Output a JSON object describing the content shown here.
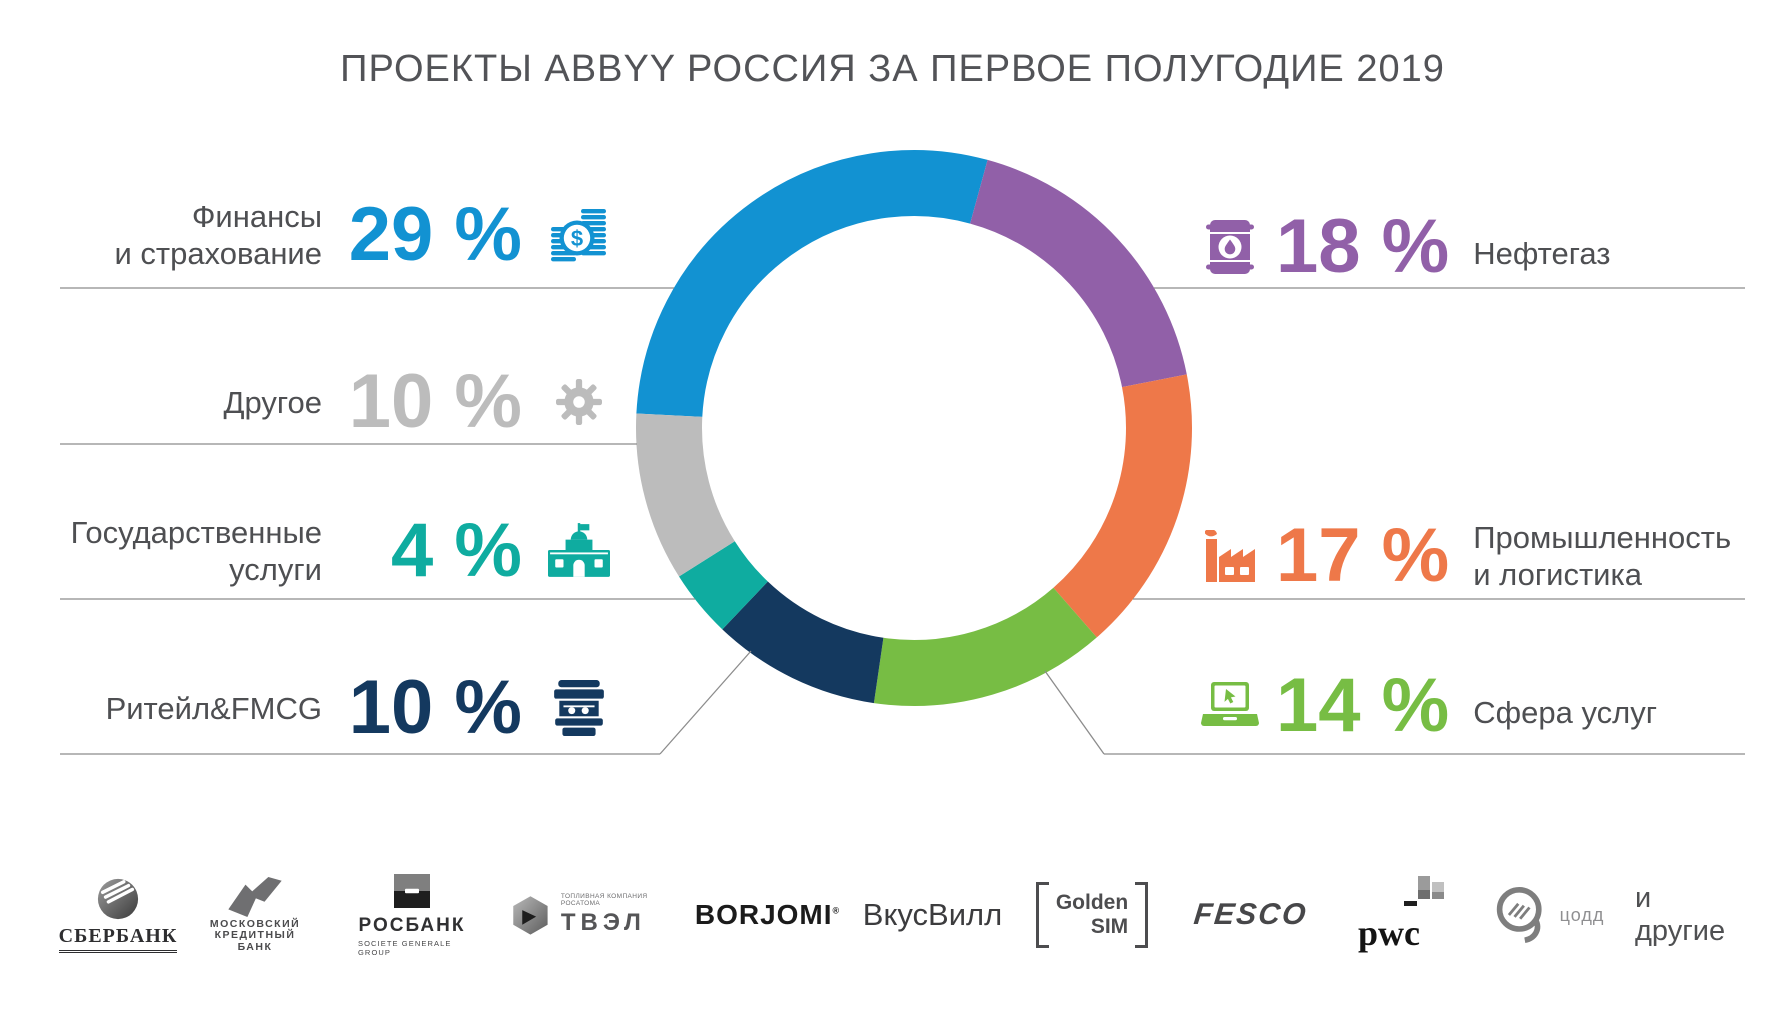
{
  "title": "ПРОЕКТЫ ABBYY РОССИЯ ЗА ПЕРВОЕ ПОЛУГОДИЕ 2019",
  "chart_data": {
    "type": "pie",
    "subtype": "donut",
    "title": "ПРОЕКТЫ ABBYY РОССИЯ ЗА ПЕРВОЕ ПОЛУГОДИЕ 2019",
    "unit": "%",
    "start_angle_deg": 273,
    "legend_position": "callouts-both-sides",
    "segments_clockwise": [
      {
        "label": "Финансы и страхование",
        "value": 29,
        "color": "#1292d2"
      },
      {
        "label": "Нефтегаз",
        "value": 18,
        "color": "#9160a8"
      },
      {
        "label": "Промышленность и логистика",
        "value": 17,
        "color": "#ee7849"
      },
      {
        "label": "Сфера услуг",
        "value": 14,
        "color": "#77bd44"
      },
      {
        "label": "Ритейл&FMCG",
        "value": 10,
        "color": "#14395f"
      },
      {
        "label": "Государственные услуги",
        "value": 4,
        "color": "#0faca0"
      },
      {
        "label": "Другое",
        "value": 10,
        "color": "#bcbcbc"
      }
    ]
  },
  "callouts": {
    "left": [
      {
        "lines": [
          "Финансы",
          "и страхование"
        ],
        "percent": "29 %",
        "color": "#1292d2",
        "icon": "coins-icon"
      },
      {
        "lines": [
          "Другое"
        ],
        "percent": "10 %",
        "color": "#bcbcbc",
        "icon": "gear-icon"
      },
      {
        "lines": [
          "Государственные",
          "услуги"
        ],
        "percent": "4 %",
        "color": "#0faca0",
        "icon": "government-building-icon"
      },
      {
        "lines": [
          "Ритейл&FMCG"
        ],
        "percent": "10 %",
        "color": "#14395f",
        "icon": "storefront-icon"
      }
    ],
    "right": [
      {
        "percent": "18 %",
        "lines": [
          "Нефтегаз"
        ],
        "color": "#9160a8",
        "icon": "oil-barrel-icon"
      },
      {
        "percent": "17 %",
        "lines": [
          "Промышленность",
          "и логистика"
        ],
        "color": "#ee7849",
        "icon": "factory-icon"
      },
      {
        "percent": "14 %",
        "lines": [
          "Сфера услуг"
        ],
        "color": "#77bd44",
        "icon": "laptop-icon"
      }
    ]
  },
  "logos": {
    "sberbank": {
      "name": "СБЕРБАНК"
    },
    "mkb": {
      "lines": [
        "МОСКОВСКИЙ",
        "КРЕДИТНЫЙ",
        "БАНК"
      ]
    },
    "rosbank": {
      "name": "РОСБАНК",
      "subtitle": "SOCIETE GENERALE GROUP"
    },
    "tvel": {
      "name": "ТВЭЛ",
      "subtitle": "ТОПЛИВНАЯ КОМПАНИЯ РОСАТОМА"
    },
    "borjomi": {
      "name": "BORJOMI",
      "reg": "®"
    },
    "vkusvill": {
      "name": "ВкусВилл"
    },
    "goldensim": {
      "lines": [
        "Golden",
        "SIM"
      ]
    },
    "fesco": {
      "name": "FESCO"
    },
    "pwc": {
      "name": "pwc"
    },
    "codd": {
      "name": "цодд"
    },
    "more_note": "и другие"
  }
}
